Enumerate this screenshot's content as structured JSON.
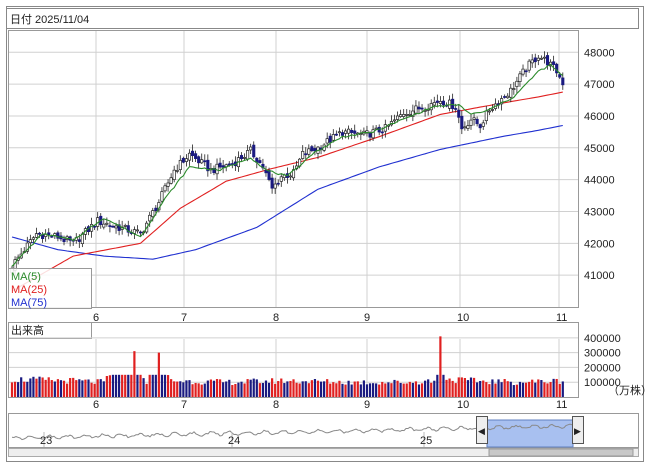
{
  "header": {
    "date_label": "日付 2025/11/04"
  },
  "legend": [
    {
      "name": "MA(5)",
      "color": "#2a8a2a"
    },
    {
      "name": "MA(25)",
      "color": "#e02020"
    },
    {
      "name": "MA(75)",
      "color": "#2030d0"
    }
  ],
  "volume_panel": {
    "title": "出来高",
    "unit": "（万株）"
  },
  "navigator": {
    "year_labels": [
      "23",
      "24",
      "25"
    ],
    "handle_left": "◀",
    "handle_right": "▶"
  },
  "colors": {
    "up": "#ffffff",
    "down": "#1a1a80",
    "volume_up": "#e02020",
    "volume_down": "#1a1a80",
    "grid": "#d0d0d0",
    "navigator_range": "#a8c0f0"
  },
  "chart_data": {
    "type": "candlestick",
    "x_month_labels": [
      "6",
      "7",
      "8",
      "9",
      "10",
      "11"
    ],
    "ylim": [
      40000,
      48700
    ],
    "yticks": [
      41000,
      42000,
      43000,
      44000,
      45000,
      46000,
      47000,
      48000
    ],
    "volume_ylim": [
      0,
      480000
    ],
    "volume_yticks": [
      100000,
      200000,
      300000,
      400000
    ],
    "ma5_anchors": [
      [
        0,
        41300
      ],
      [
        10,
        42300
      ],
      [
        20,
        42100
      ],
      [
        30,
        42800
      ],
      [
        42,
        42200
      ],
      [
        50,
        43400
      ],
      [
        58,
        44400
      ],
      [
        68,
        44300
      ],
      [
        78,
        44700
      ],
      [
        83,
        44300
      ],
      [
        90,
        44100
      ],
      [
        98,
        44800
      ],
      [
        108,
        45350
      ],
      [
        118,
        45500
      ],
      [
        128,
        45900
      ],
      [
        138,
        46300
      ],
      [
        146,
        46350
      ],
      [
        150,
        46050
      ],
      [
        155,
        46150
      ],
      [
        164,
        46600
      ],
      [
        172,
        47400
      ],
      [
        176,
        47600
      ],
      [
        180,
        47250
      ]
    ],
    "ma25_anchors": [
      [
        0,
        40500
      ],
      [
        20,
        41600
      ],
      [
        42,
        42000
      ],
      [
        55,
        43100
      ],
      [
        70,
        43950
      ],
      [
        85,
        44350
      ],
      [
        100,
        44700
      ],
      [
        120,
        45350
      ],
      [
        140,
        46050
      ],
      [
        160,
        46400
      ],
      [
        172,
        46600
      ],
      [
        180,
        46750
      ]
    ],
    "ma75_anchors": [
      [
        0,
        42200
      ],
      [
        15,
        41800
      ],
      [
        30,
        41600
      ],
      [
        46,
        41500
      ],
      [
        60,
        41800
      ],
      [
        80,
        42500
      ],
      [
        100,
        43700
      ],
      [
        120,
        44400
      ],
      [
        140,
        44950
      ],
      [
        160,
        45350
      ],
      [
        172,
        45550
      ],
      [
        180,
        45700
      ]
    ],
    "close_anchors": [
      [
        0,
        41300
      ],
      [
        8,
        42300
      ],
      [
        15,
        42200
      ],
      [
        20,
        42000
      ],
      [
        28,
        42700
      ],
      [
        35,
        42500
      ],
      [
        42,
        42300
      ],
      [
        48,
        43300
      ],
      [
        53,
        44300
      ],
      [
        58,
        44800
      ],
      [
        65,
        44300
      ],
      [
        72,
        44500
      ],
      [
        78,
        44900
      ],
      [
        82,
        44400
      ],
      [
        85,
        43700
      ],
      [
        88,
        44100
      ],
      [
        92,
        44200
      ],
      [
        95,
        44800
      ],
      [
        100,
        45000
      ],
      [
        108,
        45500
      ],
      [
        115,
        45400
      ],
      [
        122,
        45600
      ],
      [
        128,
        46100
      ],
      [
        135,
        46300
      ],
      [
        140,
        46500
      ],
      [
        145,
        46300
      ],
      [
        147,
        45600
      ],
      [
        150,
        45900
      ],
      [
        153,
        45700
      ],
      [
        156,
        46200
      ],
      [
        163,
        46800
      ],
      [
        168,
        47500
      ],
      [
        172,
        47900
      ],
      [
        175,
        47700
      ],
      [
        178,
        47400
      ],
      [
        180,
        47050
      ]
    ],
    "volume_anchors": [
      [
        0,
        120000
      ],
      [
        20,
        110000
      ],
      [
        30,
        100000
      ],
      [
        40,
        310000
      ],
      [
        44,
        100000
      ],
      [
        48,
        300000
      ],
      [
        52,
        110000
      ],
      [
        70,
        100000
      ],
      [
        90,
        110000
      ],
      [
        110,
        100000
      ],
      [
        130,
        100000
      ],
      [
        138,
        110000
      ],
      [
        140,
        410000
      ],
      [
        142,
        120000
      ],
      [
        150,
        110000
      ],
      [
        165,
        100000
      ],
      [
        180,
        110000
      ]
    ],
    "volume_series": [
      {
        "name": "出来高",
        "values": []
      }
    ]
  }
}
